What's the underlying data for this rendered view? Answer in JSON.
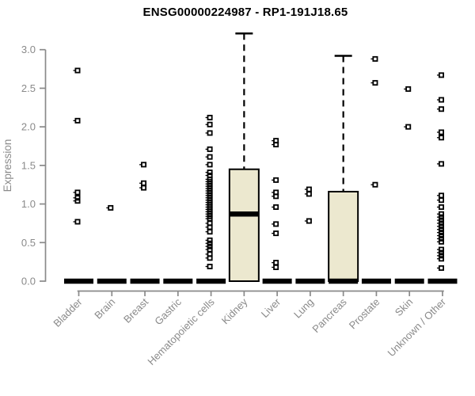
{
  "chart_data": {
    "type": "boxplot",
    "title": "ENSG00000224987 - RP1-191J18.65",
    "ylabel": "Expression",
    "xlabel": "",
    "ylim": [
      0,
      3.25
    ],
    "yticks": [
      0.0,
      0.5,
      1.0,
      1.5,
      2.0,
      2.5,
      3.0
    ],
    "grid": false,
    "legend": null,
    "colors": {
      "box_fill": "#ECE8CF",
      "box_stroke": "#000000",
      "median": "#000000",
      "outlier": "#000000",
      "axis": "#8A8A8A",
      "title": "#000000",
      "background": "#FFFFFF"
    },
    "categories": [
      {
        "label": "Bladder",
        "q1": 0,
        "median": 0,
        "q3": 0,
        "whisker_high": 0,
        "outliers": [
          2.73,
          2.08,
          1.15,
          1.08,
          1.04,
          0.77
        ]
      },
      {
        "label": "Brain",
        "q1": 0,
        "median": 0,
        "q3": 0,
        "whisker_high": 0,
        "outliers": [
          0.95
        ]
      },
      {
        "label": "Breast",
        "q1": 0,
        "median": 0,
        "q3": 0,
        "whisker_high": 0,
        "outliers": [
          1.51,
          1.27,
          1.21
        ]
      },
      {
        "label": "Gastric",
        "q1": 0,
        "median": 0,
        "q3": 0,
        "whisker_high": 0,
        "outliers": []
      },
      {
        "label": "Hematopoietic cells",
        "q1": 0,
        "median": 0,
        "q3": 0,
        "whisker_high": 0,
        "outliers": [
          2.12,
          2.03,
          1.92,
          1.71,
          1.61,
          1.51,
          1.41,
          1.37,
          1.32,
          1.29,
          1.26,
          1.23,
          1.2,
          1.17,
          1.14,
          1.11,
          1.08,
          1.05,
          1.02,
          0.99,
          0.96,
          0.93,
          0.9,
          0.87,
          0.84,
          0.81,
          0.75,
          0.7,
          0.64,
          0.53,
          0.49,
          0.45,
          0.41,
          0.35,
          0.3,
          0.19
        ]
      },
      {
        "label": "Kidney",
        "q1": 0,
        "median": 0.87,
        "q3": 1.45,
        "whisker_high": 3.21,
        "outliers": []
      },
      {
        "label": "Liver",
        "q1": 0,
        "median": 0,
        "q3": 0,
        "whisker_high": 0,
        "outliers": [
          1.82,
          1.77,
          1.31,
          1.15,
          1.1,
          0.96,
          0.74,
          0.62,
          0.24,
          0.18
        ]
      },
      {
        "label": "Lung",
        "q1": 0,
        "median": 0,
        "q3": 0,
        "whisker_high": 0,
        "outliers": [
          1.19,
          1.13,
          0.78
        ]
      },
      {
        "label": "Pancreas",
        "q1": 0,
        "median": 0,
        "q3": 1.16,
        "whisker_high": 2.92,
        "outliers": []
      },
      {
        "label": "Prostate",
        "q1": 0,
        "median": 0,
        "q3": 0,
        "whisker_high": 0,
        "outliers": [
          2.88,
          2.57,
          1.25
        ]
      },
      {
        "label": "Skin",
        "q1": 0,
        "median": 0,
        "q3": 0,
        "whisker_high": 0,
        "outliers": [
          2.49,
          2.0
        ]
      },
      {
        "label": "Unknown / Other",
        "q1": 0,
        "median": 0,
        "q3": 0,
        "whisker_high": 0,
        "outliers": [
          2.67,
          2.35,
          2.23,
          1.93,
          1.86,
          1.52,
          1.11,
          1.05,
          0.96,
          0.87,
          0.83,
          0.79,
          0.75,
          0.71,
          0.67,
          0.63,
          0.59,
          0.55,
          0.51,
          0.41,
          0.37,
          0.33,
          0.29,
          0.17
        ]
      }
    ]
  }
}
